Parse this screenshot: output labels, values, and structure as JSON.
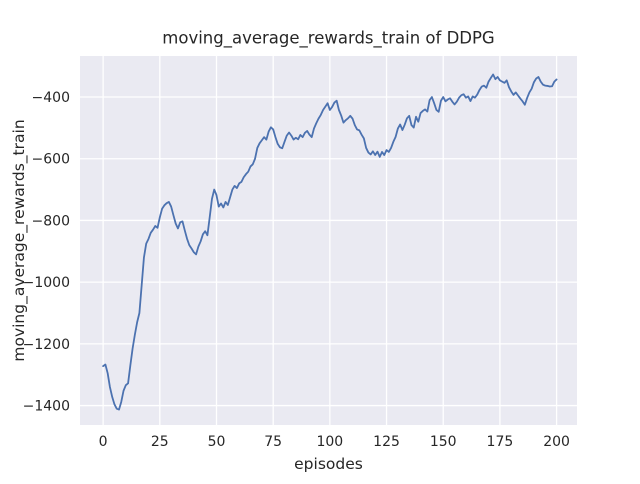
{
  "figure": {
    "title": "moving_average_rewards_train of DDPG",
    "xlabel": "episodes",
    "ylabel": "moving_average_rewards_train"
  },
  "chart_data": {
    "type": "line",
    "title": "moving_average_rewards_train of DDPG",
    "xlabel": "episodes",
    "ylabel": "moving_average_rewards_train",
    "grid": true,
    "legend": false,
    "xlim": [
      -10.2,
      209.0
    ],
    "ylim": [
      -1463,
      -267
    ],
    "xticks": [
      0,
      25,
      50,
      75,
      100,
      125,
      150,
      175,
      200
    ],
    "yticks": [
      -400,
      -600,
      -800,
      -1000,
      -1200,
      -1400
    ],
    "colors": {
      "plot_bg": "#eaeaf2",
      "grid": "#ffffff",
      "line": "#4c72b0",
      "text": "#262626"
    },
    "series": [
      {
        "name": "moving_average_rewards_train",
        "color": "#4c72b0",
        "x": [
          0,
          1,
          2,
          3,
          4,
          5,
          6,
          7,
          8,
          9,
          10,
          11,
          12,
          13,
          14,
          15,
          16,
          17,
          18,
          19,
          20,
          21,
          22,
          23,
          24,
          25,
          26,
          27,
          28,
          29,
          30,
          31,
          32,
          33,
          34,
          35,
          36,
          37,
          38,
          39,
          40,
          41,
          42,
          43,
          44,
          45,
          46,
          47,
          48,
          49,
          50,
          51,
          52,
          53,
          54,
          55,
          56,
          57,
          58,
          59,
          60,
          61,
          62,
          63,
          64,
          65,
          66,
          67,
          68,
          69,
          70,
          71,
          72,
          73,
          74,
          75,
          76,
          77,
          78,
          79,
          80,
          81,
          82,
          83,
          84,
          85,
          86,
          87,
          88,
          89,
          90,
          91,
          92,
          93,
          94,
          95,
          96,
          97,
          98,
          99,
          100,
          101,
          102,
          103,
          104,
          105,
          106,
          107,
          108,
          109,
          110,
          111,
          112,
          113,
          114,
          115,
          116,
          117,
          118,
          119,
          120,
          121,
          122,
          123,
          124,
          125,
          126,
          127,
          128,
          129,
          130,
          131,
          132,
          133,
          134,
          135,
          136,
          137,
          138,
          139,
          140,
          141,
          142,
          143,
          144,
          145,
          146,
          147,
          148,
          149,
          150,
          151,
          152,
          153,
          154,
          155,
          156,
          157,
          158,
          159,
          160,
          161,
          162,
          163,
          164,
          165,
          166,
          167,
          168,
          169,
          170,
          171,
          172,
          173,
          174,
          175,
          176,
          177,
          178,
          179,
          180,
          181,
          182,
          183,
          184,
          185,
          186,
          187,
          188,
          189,
          190,
          191,
          192,
          193,
          194,
          195,
          196,
          197,
          198,
          199,
          200
        ],
        "y": [
          -1272,
          -1267,
          -1295,
          -1340,
          -1372,
          -1396,
          -1410,
          -1413,
          -1388,
          -1352,
          -1334,
          -1328,
          -1270,
          -1215,
          -1170,
          -1130,
          -1100,
          -1010,
          -920,
          -875,
          -860,
          -840,
          -830,
          -818,
          -824,
          -790,
          -762,
          -751,
          -744,
          -740,
          -755,
          -783,
          -810,
          -826,
          -806,
          -803,
          -832,
          -859,
          -880,
          -891,
          -903,
          -910,
          -885,
          -868,
          -845,
          -835,
          -848,
          -790,
          -730,
          -700,
          -718,
          -755,
          -745,
          -758,
          -740,
          -750,
          -725,
          -700,
          -688,
          -695,
          -680,
          -675,
          -660,
          -650,
          -642,
          -625,
          -618,
          -600,
          -565,
          -550,
          -540,
          -530,
          -538,
          -512,
          -498,
          -505,
          -530,
          -552,
          -563,
          -566,
          -545,
          -525,
          -515,
          -525,
          -538,
          -532,
          -537,
          -523,
          -530,
          -516,
          -510,
          -522,
          -530,
          -502,
          -485,
          -470,
          -458,
          -442,
          -431,
          -420,
          -442,
          -432,
          -418,
          -412,
          -442,
          -460,
          -483,
          -475,
          -469,
          -461,
          -470,
          -491,
          -505,
          -508,
          -522,
          -534,
          -565,
          -580,
          -586,
          -576,
          -588,
          -577,
          -594,
          -578,
          -588,
          -572,
          -578,
          -565,
          -545,
          -529,
          -502,
          -489,
          -507,
          -490,
          -469,
          -461,
          -491,
          -499,
          -464,
          -480,
          -452,
          -445,
          -440,
          -447,
          -410,
          -400,
          -420,
          -442,
          -448,
          -412,
          -400,
          -414,
          -408,
          -404,
          -415,
          -424,
          -415,
          -402,
          -394,
          -391,
          -402,
          -398,
          -413,
          -398,
          -402,
          -392,
          -377,
          -366,
          -363,
          -370,
          -350,
          -338,
          -327,
          -342,
          -335,
          -346,
          -350,
          -354,
          -346,
          -368,
          -382,
          -393,
          -385,
          -395,
          -405,
          -414,
          -425,
          -403,
          -385,
          -373,
          -352,
          -340,
          -335,
          -350,
          -360,
          -363,
          -364,
          -366,
          -365,
          -350,
          -343
        ]
      }
    ]
  }
}
